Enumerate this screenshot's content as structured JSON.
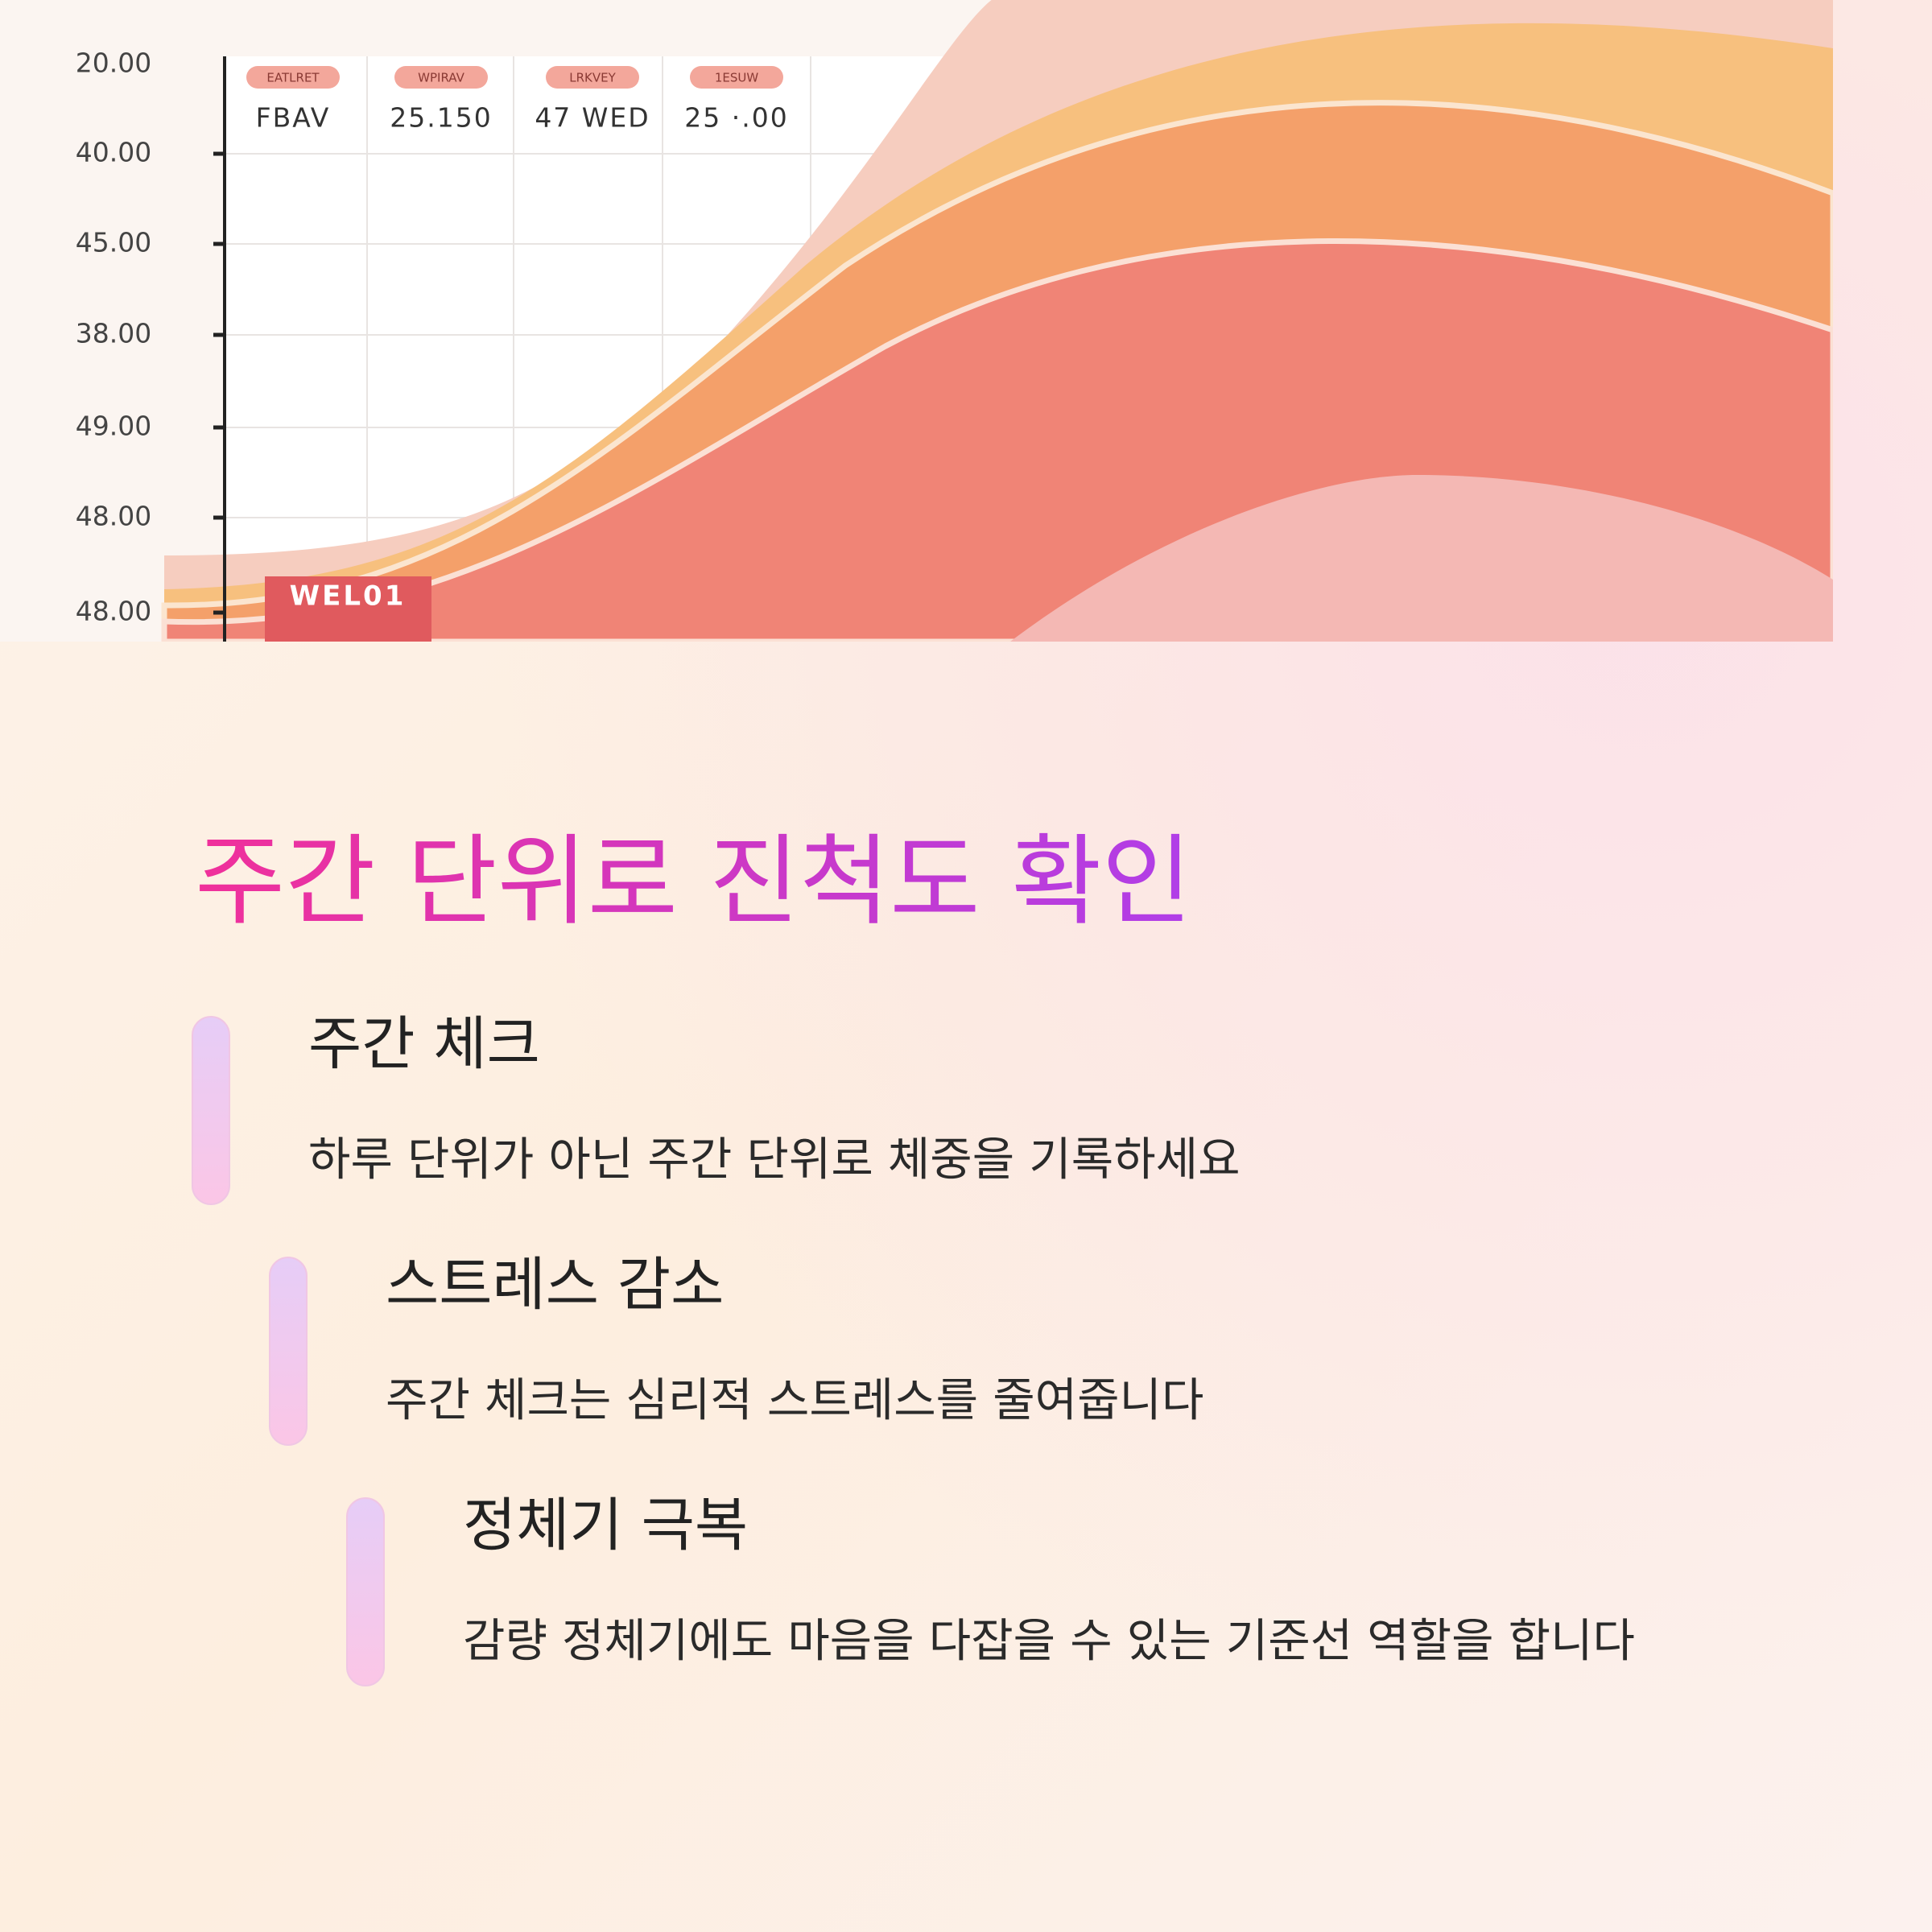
{
  "chart_image": {
    "y_labels": [
      "20.00",
      "40.00",
      "45.00",
      "38.00",
      "49.00",
      "48.00",
      "48.00"
    ],
    "header_chips": [
      "EATLRET",
      "WPIRAV",
      "LRKVEY",
      "1ESUW"
    ],
    "header_values": [
      "FBAV",
      "25.150",
      "47 WED",
      "25 ·.00"
    ],
    "badge": "WEL01"
  },
  "title": "주간 단위로 진척도 확인",
  "items": [
    {
      "heading": "주간 체크",
      "text": "하루 단위가 아닌 주간 단위로 체중을 기록하세요"
    },
    {
      "heading": "스트레스 감소",
      "text": "주간 체크는 심리적 스트레스를 줄여줍니다"
    },
    {
      "heading": "정체기 극복",
      "text": "감량 정체기에도 마음을 다잡을 수 있는 기준선 역할을 합니다"
    }
  ]
}
